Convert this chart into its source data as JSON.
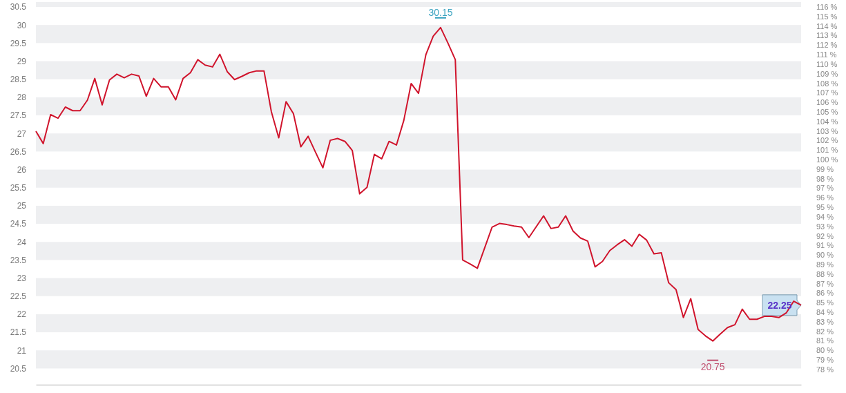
{
  "chart_data": {
    "type": "line",
    "categories": [
      null,
      null,
      null,
      null,
      null,
      null,
      null,
      null,
      null,
      null,
      null,
      null,
      null,
      null,
      null,
      null,
      null,
      null,
      null,
      null,
      null,
      null,
      null,
      null,
      null,
      null,
      null,
      null,
      null,
      null,
      null,
      null,
      null,
      null,
      null,
      null,
      null,
      null,
      null,
      null,
      null,
      null,
      null,
      null,
      null,
      null,
      null,
      null,
      null,
      null,
      null,
      null,
      null,
      null,
      null,
      null,
      null,
      null,
      null,
      null,
      null,
      null,
      null,
      null,
      null,
      null,
      null,
      null,
      null,
      null,
      null,
      null,
      null,
      null,
      null,
      null,
      null,
      null,
      null,
      null,
      null,
      null,
      null,
      null,
      null,
      null,
      null,
      null,
      null,
      null,
      null,
      null,
      null,
      null,
      null,
      null,
      null,
      null,
      null,
      null,
      null,
      null,
      null,
      null,
      null
    ],
    "series": [
      {
        "color": "#d0142c",
        "values": [
          27.06,
          26.72,
          27.52,
          27.42,
          27.73,
          27.63,
          27.63,
          27.92,
          28.52,
          27.79,
          28.48,
          28.64,
          28.54,
          28.64,
          28.59,
          28.03,
          28.52,
          28.29,
          28.29,
          27.93,
          28.52,
          28.68,
          29.04,
          28.89,
          28.84,
          29.19,
          28.71,
          28.49,
          28.58,
          28.68,
          28.73,
          28.73,
          27.6,
          26.88,
          27.88,
          27.55,
          26.63,
          26.92,
          26.48,
          26.05,
          26.81,
          26.86,
          26.78,
          26.53,
          25.33,
          25.51,
          26.42,
          26.3,
          26.78,
          26.68,
          27.36,
          28.38,
          28.11,
          29.18,
          29.69,
          29.93,
          29.5,
          29.04,
          23.5,
          23.39,
          23.27,
          23.84,
          24.41,
          24.51,
          24.48,
          24.44,
          24.41,
          24.12,
          24.42,
          24.72,
          24.37,
          24.41,
          24.72,
          24.3,
          24.11,
          24.02,
          23.31,
          23.46,
          23.76,
          23.92,
          24.06,
          23.88,
          24.21,
          24.05,
          23.67,
          23.7,
          22.87,
          22.68,
          21.91,
          22.43,
          21.58,
          21.4,
          21.26,
          21.45,
          21.63,
          21.71,
          22.14,
          21.86,
          21.86,
          21.94,
          21.94,
          21.91,
          22.04,
          22.36,
          22.25
        ]
      }
    ],
    "ylim": [
      20.05,
      30.5
    ],
    "yticks": [
      20.5,
      21,
      21.5,
      22,
      22.5,
      23,
      23.5,
      24,
      24.5,
      25,
      25.5,
      26,
      26.5,
      27,
      27.5,
      28,
      28.5,
      29,
      29.5,
      30,
      30.5
    ],
    "y2lim": [
      76.4,
      116
    ],
    "y2ticks": [
      {
        "value": 78,
        "label": "78 %"
      },
      {
        "value": 79,
        "label": "79 %"
      },
      {
        "value": 80,
        "label": "80 %"
      },
      {
        "value": 81,
        "label": "81 %"
      },
      {
        "value": 82,
        "label": "82 %"
      },
      {
        "value": 83,
        "label": "83 %"
      },
      {
        "value": 84,
        "label": "84 %"
      },
      {
        "value": 85,
        "label": "85 %"
      },
      {
        "value": 86,
        "label": "86 %"
      },
      {
        "value": 87,
        "label": "87 %"
      },
      {
        "value": 88,
        "label": "88 %"
      },
      {
        "value": 89,
        "label": "89 %"
      },
      {
        "value": 90,
        "label": "90 %"
      },
      {
        "value": 91,
        "label": "91 %"
      },
      {
        "value": 92,
        "label": "92 %"
      },
      {
        "value": 93,
        "label": "93 %"
      },
      {
        "value": 94,
        "label": "94 %"
      },
      {
        "value": 95,
        "label": "95 %"
      },
      {
        "value": 96,
        "label": "96 %"
      },
      {
        "value": 97,
        "label": "97 %"
      },
      {
        "value": 98,
        "label": "98 %"
      },
      {
        "value": 99,
        "label": "99 %"
      },
      {
        "value": 100,
        "label": "100 %"
      },
      {
        "value": 101,
        "label": "101 %"
      },
      {
        "value": 102,
        "label": "102 %"
      },
      {
        "value": 103,
        "label": "103 %"
      },
      {
        "value": 104,
        "label": "104 %"
      },
      {
        "value": 105,
        "label": "105 %"
      },
      {
        "value": 106,
        "label": "106 %"
      },
      {
        "value": 107,
        "label": "107 %"
      },
      {
        "value": 108,
        "label": "108 %"
      },
      {
        "value": 109,
        "label": "109 %"
      },
      {
        "value": 110,
        "label": "110 %"
      },
      {
        "value": 111,
        "label": "111 %"
      },
      {
        "value": 112,
        "label": "112 %"
      },
      {
        "value": 113,
        "label": "113 %"
      },
      {
        "value": 114,
        "label": "114 %"
      },
      {
        "value": 115,
        "label": "115 %"
      },
      {
        "value": 116,
        "label": "116 %"
      }
    ],
    "marker": "none",
    "line_style": "solid",
    "annotations": [
      "30.15",
      "20.75",
      "22.25"
    ]
  }
}
